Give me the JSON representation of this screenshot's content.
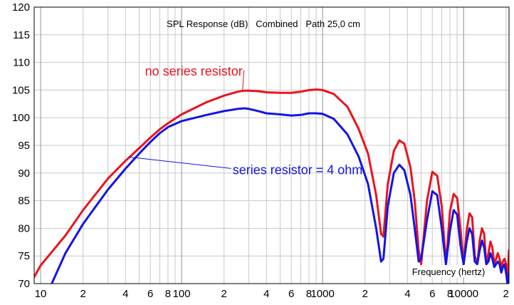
{
  "chart_data": {
    "type": "line",
    "title": "SPL Response (dB)   Combined   Path 25,0 cm",
    "xlabel": "Frequency (hertz)",
    "ylabel": "",
    "xscale": "log",
    "xlim": [
      9,
      21000
    ],
    "ylim": [
      70,
      120
    ],
    "grid": true,
    "background": "#ffffff",
    "grid_color": "#c8c8c8",
    "y_ticks": [
      {
        "value": 70,
        "label": "70"
      },
      {
        "value": 75,
        "label": "75"
      },
      {
        "value": 80,
        "label": "80"
      },
      {
        "value": 85,
        "label": "85"
      },
      {
        "value": 90,
        "label": "90"
      },
      {
        "value": 95,
        "label": "95"
      },
      {
        "value": 100,
        "label": "100"
      },
      {
        "value": 105,
        "label": "105"
      },
      {
        "value": 110,
        "label": "110"
      },
      {
        "value": 115,
        "label": "115"
      },
      {
        "value": 120,
        "label": "120"
      }
    ],
    "x_ticks": [
      {
        "value": 10,
        "label": "10"
      },
      {
        "value": 20,
        "label": "2"
      },
      {
        "value": 40,
        "label": "4"
      },
      {
        "value": 60,
        "label": "6"
      },
      {
        "value": 80,
        "label": "8"
      },
      {
        "value": 100,
        "label": "100"
      },
      {
        "value": 200,
        "label": "2"
      },
      {
        "value": 400,
        "label": "4"
      },
      {
        "value": 600,
        "label": "6"
      },
      {
        "value": 800,
        "label": "8"
      },
      {
        "value": 1000,
        "label": "1000"
      },
      {
        "value": 2000,
        "label": "2"
      },
      {
        "value": 4000,
        "label": "4"
      },
      {
        "value": 6000,
        "label": "6"
      },
      {
        "value": 8000,
        "label": "8"
      },
      {
        "value": 10000,
        "label": "10000"
      },
      {
        "value": 20000,
        "label": "2"
      }
    ],
    "series": [
      {
        "name": "no series resistor",
        "color": "#e8141e",
        "x": [
          9,
          10,
          15,
          20,
          30,
          40,
          50,
          60,
          70,
          80,
          100,
          150,
          200,
          250,
          280,
          300,
          350,
          400,
          500,
          600,
          700,
          800,
          900,
          1000,
          1200,
          1500,
          1800,
          2100,
          2400,
          2600,
          2700,
          2900,
          3200,
          3500,
          3800,
          4200,
          4500,
          4800,
          5000,
          5500,
          6000,
          6500,
          7000,
          7500,
          8000,
          8500,
          9000,
          9500,
          10000,
          10500,
          11000,
          11500,
          12000,
          12500,
          13000,
          13500,
          14000,
          14500,
          15000,
          15500,
          16000,
          16500,
          17000,
          17500,
          18000,
          18500,
          19000,
          19500,
          20000,
          20500,
          21000
        ],
        "y": [
          71.2,
          73.3,
          78.7,
          83.3,
          89.0,
          92.2,
          94.5,
          96.4,
          97.9,
          99.0,
          100.6,
          102.8,
          104.0,
          104.7,
          104.9,
          104.9,
          104.8,
          104.6,
          104.5,
          104.5,
          104.7,
          105.0,
          105.1,
          105.0,
          104.3,
          102.0,
          98.0,
          93.5,
          86.0,
          79.0,
          78.5,
          88.0,
          94.0,
          95.9,
          95.3,
          91.0,
          85.0,
          76.0,
          73.5,
          85.0,
          90.2,
          89.5,
          84.0,
          73.5,
          83.0,
          86.2,
          85.5,
          80.0,
          73.5,
          79.5,
          82.7,
          82.0,
          75.0,
          73.5,
          77.8,
          80.0,
          79.0,
          73.5,
          75.5,
          77.6,
          76.5,
          73.5,
          74.5,
          75.5,
          74.5,
          73.0,
          74.0,
          74.5,
          73.5,
          71.0,
          76.0
        ]
      },
      {
        "name": "series resistor = 4 ohm",
        "color": "#1414e6",
        "x": [
          12,
          15,
          20,
          30,
          40,
          50,
          60,
          70,
          80,
          100,
          150,
          200,
          250,
          280,
          300,
          350,
          400,
          500,
          600,
          700,
          800,
          900,
          1000,
          1200,
          1500,
          1800,
          2100,
          2400,
          2600,
          2700,
          2900,
          3200,
          3500,
          3800,
          4200,
          4500,
          4800,
          5000,
          5500,
          6000,
          6500,
          7000,
          7500,
          8000,
          8500,
          9000,
          9500,
          10000,
          10500,
          11000,
          11500,
          12000,
          12500,
          13000,
          13500,
          14000,
          14500,
          15000,
          15500,
          16000,
          16500,
          17000,
          17500,
          18000,
          18500,
          19000,
          19500,
          20000,
          20500,
          21000
        ],
        "y": [
          70.0,
          75.5,
          80.8,
          87.0,
          90.8,
          93.5,
          95.6,
          97.2,
          98.3,
          99.4,
          100.5,
          101.2,
          101.6,
          101.7,
          101.6,
          101.2,
          100.8,
          100.6,
          100.4,
          100.5,
          100.8,
          100.8,
          100.7,
          99.8,
          97.0,
          93.0,
          88.0,
          80.0,
          74.0,
          74.5,
          84.0,
          90.0,
          91.5,
          90.5,
          86.0,
          80.0,
          74.0,
          74.5,
          81.5,
          86.7,
          86.0,
          80.0,
          73.5,
          79.5,
          83.3,
          82.5,
          77.0,
          73.5,
          77.5,
          80.0,
          79.0,
          74.0,
          73.5,
          76.0,
          77.8,
          76.5,
          73.5,
          74.0,
          75.5,
          74.5,
          73.0,
          73.5,
          74.0,
          73.5,
          72.0,
          73.0,
          73.5,
          72.0,
          70.0,
          72.0
        ]
      }
    ],
    "annotations": [
      {
        "text": "no series resistor",
        "color": "#e8141e",
        "x": 55,
        "y": 107.6,
        "pointer_to": {
          "x": 270,
          "y": 104.7
        }
      },
      {
        "text": "series resistor = 4 ohm",
        "color": "#1414e6",
        "x": 230,
        "y": 89.8,
        "pointer_to": {
          "x": 42,
          "y": 92.9
        }
      }
    ]
  }
}
